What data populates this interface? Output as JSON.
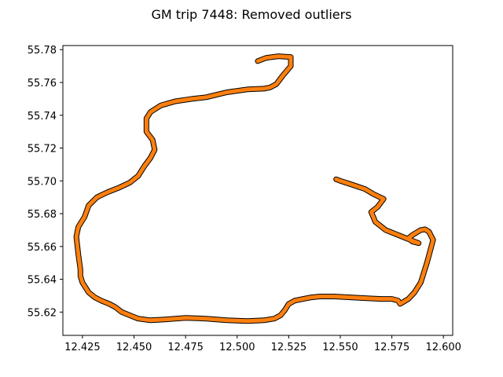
{
  "chart_data": {
    "type": "line",
    "title": "GM trip 7448: Removed outliers",
    "xlabel": "",
    "ylabel": "",
    "xlim": [
      12.4155,
      12.6045
    ],
    "ylim": [
      55.6058,
      55.7825
    ],
    "grid": false,
    "legend": "none",
    "x_ticks": [
      12.425,
      12.45,
      12.475,
      12.5,
      12.525,
      12.55,
      12.575,
      12.6
    ],
    "x_tick_labels": [
      "12.425",
      "12.450",
      "12.475",
      "12.500",
      "12.525",
      "12.550",
      "12.575",
      "12.600"
    ],
    "y_ticks": [
      55.62,
      55.64,
      55.66,
      55.68,
      55.7,
      55.72,
      55.74,
      55.76,
      55.78
    ],
    "y_tick_labels": [
      "55.62",
      "55.64",
      "55.66",
      "55.68",
      "55.70",
      "55.72",
      "55.74",
      "55.76",
      "55.78"
    ],
    "series": [
      {
        "color": "#000000",
        "x": [
          12.51,
          12.514,
          12.52,
          12.526,
          12.526,
          12.522,
          12.519,
          12.516,
          12.513,
          12.505,
          12.495,
          12.485,
          12.478,
          12.47,
          12.463,
          12.458,
          12.456,
          12.456,
          12.459,
          12.46,
          12.458,
          12.455,
          12.452,
          12.448,
          12.443,
          12.437,
          12.432,
          12.428,
          12.426,
          12.423,
          12.422,
          12.423,
          12.424,
          12.424,
          12.425,
          12.428,
          12.431,
          12.434,
          12.438,
          12.441,
          12.444,
          12.448,
          12.452,
          12.458,
          12.465,
          12.475,
          12.485,
          12.495,
          12.505,
          12.513,
          12.518,
          12.521,
          12.523,
          12.525,
          12.528,
          12.532,
          12.536,
          12.54,
          12.547,
          12.555,
          12.562,
          12.57,
          12.575,
          12.578,
          12.579,
          12.583,
          12.586,
          12.589,
          12.592,
          12.595,
          12.593,
          12.591,
          12.589,
          12.585,
          12.583,
          12.585,
          12.588,
          12.584,
          12.578,
          12.572,
          12.567,
          12.565,
          12.568,
          12.571,
          12.566,
          12.562,
          12.555,
          12.55,
          12.548
        ],
        "y": [
          55.773,
          55.775,
          55.776,
          55.7755,
          55.77,
          55.764,
          55.759,
          55.757,
          55.7562,
          55.7558,
          55.754,
          55.751,
          55.75,
          55.7485,
          55.746,
          55.742,
          55.738,
          55.73,
          55.725,
          55.719,
          55.714,
          55.709,
          55.703,
          55.699,
          55.696,
          55.693,
          55.69,
          55.685,
          55.678,
          55.672,
          55.666,
          55.655,
          55.646,
          55.642,
          55.638,
          55.632,
          55.629,
          55.627,
          55.625,
          55.623,
          55.62,
          55.618,
          55.616,
          55.615,
          55.6155,
          55.6165,
          55.616,
          55.615,
          55.6145,
          55.615,
          55.616,
          55.618,
          55.621,
          55.625,
          55.627,
          55.628,
          55.629,
          55.6295,
          55.6295,
          55.629,
          55.6285,
          55.628,
          55.628,
          55.627,
          55.625,
          55.628,
          55.632,
          55.638,
          55.65,
          55.664,
          55.669,
          55.6705,
          55.67,
          55.667,
          55.665,
          55.663,
          55.662,
          55.664,
          55.667,
          55.67,
          55.675,
          55.681,
          55.684,
          55.689,
          55.692,
          55.695,
          55.698,
          55.7,
          55.701
        ]
      },
      {
        "color": "#ff7f0e",
        "x": [
          12.51,
          12.514,
          12.52,
          12.526,
          12.526,
          12.522,
          12.519,
          12.516,
          12.513,
          12.505,
          12.495,
          12.485,
          12.478,
          12.47,
          12.463,
          12.458,
          12.456,
          12.456,
          12.459,
          12.46,
          12.458,
          12.455,
          12.452,
          12.448,
          12.443,
          12.437,
          12.432,
          12.428,
          12.426,
          12.423,
          12.422,
          12.423,
          12.424,
          12.424,
          12.425,
          12.428,
          12.431,
          12.434,
          12.438,
          12.441,
          12.444,
          12.448,
          12.452,
          12.458,
          12.465,
          12.475,
          12.485,
          12.495,
          12.505,
          12.513,
          12.518,
          12.521,
          12.523,
          12.525,
          12.528,
          12.532,
          12.536,
          12.54,
          12.547,
          12.555,
          12.562,
          12.57,
          12.575,
          12.578,
          12.579,
          12.583,
          12.586,
          12.589,
          12.592,
          12.595,
          12.593,
          12.591,
          12.589,
          12.585,
          12.583,
          12.585,
          12.588,
          12.584,
          12.578,
          12.572,
          12.567,
          12.565,
          12.568,
          12.571,
          12.566,
          12.562,
          12.555,
          12.55,
          12.548
        ],
        "y": [
          55.773,
          55.775,
          55.776,
          55.7755,
          55.77,
          55.764,
          55.759,
          55.757,
          55.7562,
          55.7558,
          55.754,
          55.751,
          55.75,
          55.7485,
          55.746,
          55.742,
          55.738,
          55.73,
          55.725,
          55.719,
          55.714,
          55.709,
          55.703,
          55.699,
          55.696,
          55.693,
          55.69,
          55.685,
          55.678,
          55.672,
          55.666,
          55.655,
          55.646,
          55.642,
          55.638,
          55.632,
          55.629,
          55.627,
          55.625,
          55.623,
          55.62,
          55.618,
          55.616,
          55.615,
          55.6155,
          55.6165,
          55.616,
          55.615,
          55.6145,
          55.615,
          55.616,
          55.618,
          55.621,
          55.625,
          55.627,
          55.628,
          55.629,
          55.6295,
          55.6295,
          55.629,
          55.6285,
          55.628,
          55.628,
          55.627,
          55.625,
          55.628,
          55.632,
          55.638,
          55.65,
          55.664,
          55.669,
          55.6705,
          55.67,
          55.667,
          55.665,
          55.663,
          55.662,
          55.664,
          55.667,
          55.67,
          55.675,
          55.681,
          55.684,
          55.689,
          55.692,
          55.695,
          55.698,
          55.7,
          55.701
        ]
      }
    ]
  }
}
